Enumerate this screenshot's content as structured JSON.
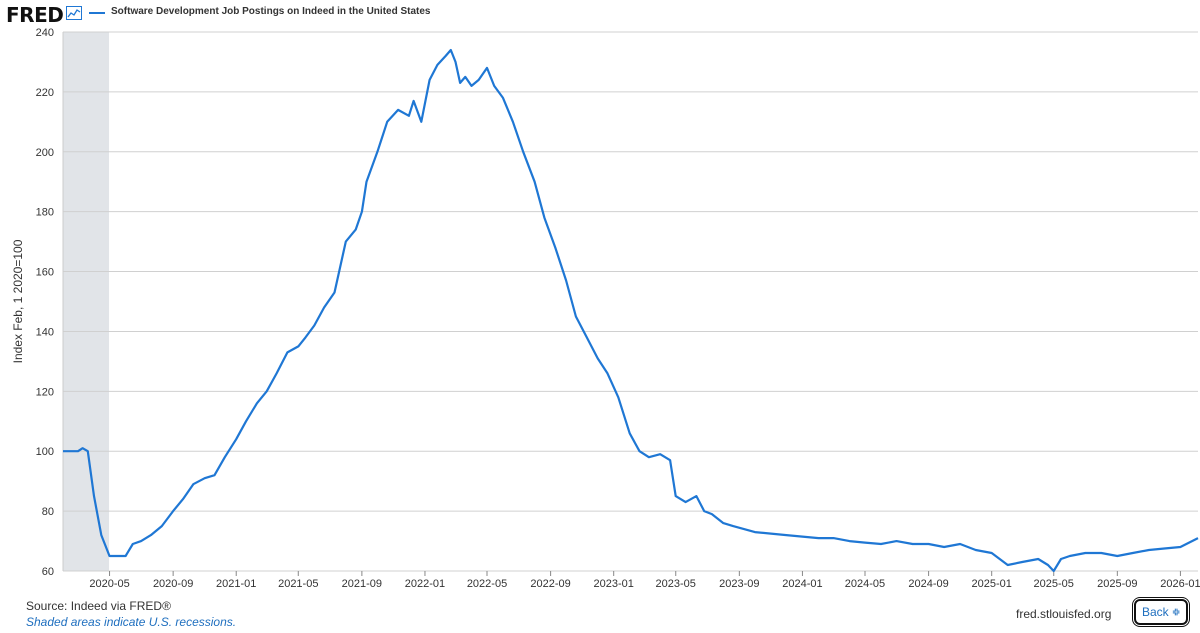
{
  "header": {
    "logo_text": "FRED",
    "series_title": "Software Development Job Postings on Indeed in the United States",
    "line_color": "#1f77d4"
  },
  "footer": {
    "source": "Source: Indeed via FRED®",
    "recession_note": "Shaded areas indicate U.S. recessions.",
    "url": "fred.stlouisfed.org",
    "back_label": "Back"
  },
  "chart_data": {
    "type": "line",
    "title": "Software Development Job Postings on Indeed in the United States",
    "ylabel": "Index Feb, 1 2020=100",
    "xlabel": "",
    "ylim": [
      60,
      240
    ],
    "xlim": [
      "2020-02-01",
      "2026-02-04"
    ],
    "grid": true,
    "y_ticks": [
      60,
      80,
      100,
      120,
      140,
      160,
      180,
      200,
      220,
      240
    ],
    "x_ticks": [
      "2020-05",
      "2020-09",
      "2021-01",
      "2021-05",
      "2021-09",
      "2022-01",
      "2022-05",
      "2022-09",
      "2023-01",
      "2023-05",
      "2023-09",
      "2024-01",
      "2024-05",
      "2024-09",
      "2025-01",
      "2025-05",
      "2025-09",
      "2026-01"
    ],
    "recession_shading": [
      [
        "2020-02-01",
        "2020-04-30"
      ]
    ],
    "series": [
      {
        "color": "#1f77d4",
        "x": [
          "2020-02-01",
          "2020-03-01",
          "2020-03-10",
          "2020-03-20",
          "2020-04-01",
          "2020-04-15",
          "2020-05-01",
          "2020-05-15",
          "2020-06-01",
          "2020-06-15",
          "2020-07-01",
          "2020-07-20",
          "2020-08-10",
          "2020-09-01",
          "2020-09-20",
          "2020-10-10",
          "2020-11-01",
          "2020-11-20",
          "2020-12-10",
          "2021-01-01",
          "2021-01-20",
          "2021-02-10",
          "2021-03-01",
          "2021-03-20",
          "2021-04-10",
          "2021-05-01",
          "2021-05-15",
          "2021-06-01",
          "2021-06-20",
          "2021-07-10",
          "2021-08-01",
          "2021-08-20",
          "2021-09-01",
          "2021-09-10",
          "2021-10-01",
          "2021-10-20",
          "2021-11-10",
          "2021-12-01",
          "2021-12-10",
          "2021-12-25",
          "2022-01-10",
          "2022-01-25",
          "2022-02-10",
          "2022-02-20",
          "2022-03-01",
          "2022-03-10",
          "2022-03-20",
          "2022-04-01",
          "2022-04-15",
          "2022-05-01",
          "2022-05-15",
          "2022-06-01",
          "2022-06-20",
          "2022-07-10",
          "2022-08-01",
          "2022-08-20",
          "2022-09-10",
          "2022-10-01",
          "2022-10-20",
          "2022-11-10",
          "2022-12-01",
          "2022-12-20",
          "2023-01-10",
          "2023-02-01",
          "2023-02-20",
          "2023-03-10",
          "2023-04-01",
          "2023-04-20",
          "2023-05-01",
          "2023-05-20",
          "2023-06-10",
          "2023-06-25",
          "2023-07-10",
          "2023-08-01",
          "2023-08-20",
          "2023-09-10",
          "2023-10-01",
          "2023-11-01",
          "2023-12-01",
          "2024-01-01",
          "2024-02-01",
          "2024-03-01",
          "2024-04-01",
          "2024-05-01",
          "2024-06-01",
          "2024-07-01",
          "2024-08-01",
          "2024-09-01",
          "2024-10-01",
          "2024-11-01",
          "2024-12-01",
          "2025-01-01",
          "2025-02-01",
          "2025-03-01",
          "2025-04-01",
          "2025-04-20",
          "2025-05-01",
          "2025-05-15",
          "2025-06-01",
          "2025-07-01",
          "2025-08-01",
          "2025-09-01",
          "2025-10-01",
          "2025-11-01",
          "2025-12-01",
          "2026-01-01",
          "2026-02-04"
        ],
        "y": [
          100,
          100,
          101,
          100,
          85,
          72,
          65,
          65,
          65,
          69,
          70,
          72,
          75,
          80,
          84,
          89,
          91,
          92,
          98,
          104,
          110,
          116,
          120,
          126,
          133,
          135,
          138,
          142,
          148,
          153,
          170,
          174,
          180,
          190,
          200,
          210,
          214,
          212,
          217,
          210,
          224,
          229,
          232,
          234,
          230,
          223,
          225,
          222,
          224,
          228,
          222,
          218,
          210,
          200,
          190,
          178,
          168,
          157,
          145,
          138,
          131,
          126,
          118,
          106,
          100,
          98,
          99,
          97,
          85,
          83,
          85,
          80,
          79,
          76,
          75,
          74,
          73,
          72.5,
          72,
          71.5,
          71,
          71,
          70,
          69.5,
          69,
          70,
          69,
          69,
          68,
          69,
          67,
          66,
          62,
          63,
          64,
          62,
          60,
          64,
          65,
          66,
          66,
          65,
          66,
          67,
          67.5,
          68,
          71
        ]
      }
    ]
  }
}
